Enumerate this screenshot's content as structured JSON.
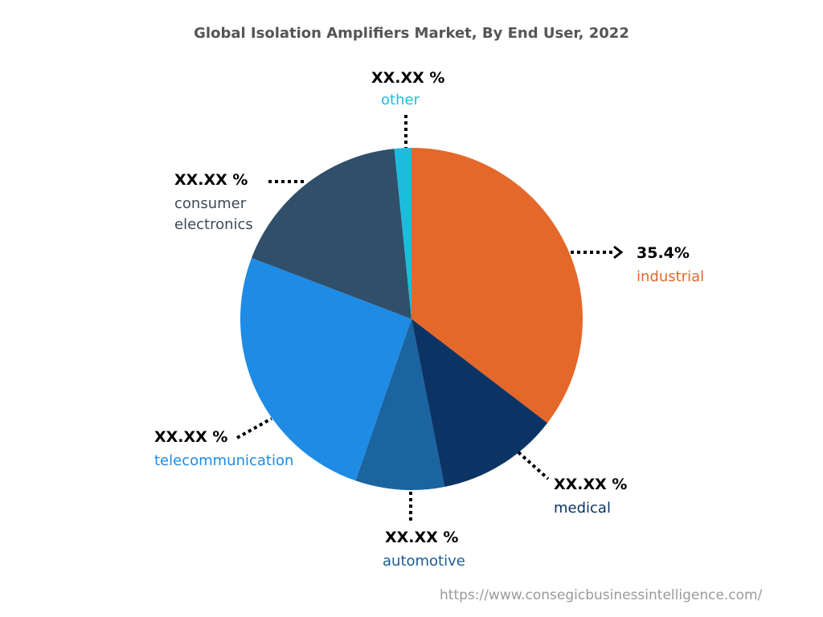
{
  "chart_data": {
    "type": "pie",
    "title": "Global Isolation Amplifiers Market, By End User, 2022",
    "start": "top",
    "direction": "clockwise",
    "slices": [
      {
        "name": "industrial",
        "value": 35.4,
        "label": "35.4%",
        "color": "#E4682A"
      },
      {
        "name": "medical",
        "value": 11.5,
        "label": "XX.XX %",
        "color": "#0B3363"
      },
      {
        "name": "automotive",
        "value": 8.4,
        "label": "XX.XX %",
        "color": "#1A64A0"
      },
      {
        "name": "telecommunication",
        "value": 25.5,
        "label": "XX.XX %",
        "color": "#1E8BE5"
      },
      {
        "name": "consumer electronics",
        "value": 17.6,
        "label": "XX.XX %",
        "color": "#2F4F6B"
      },
      {
        "name": "other",
        "value": 1.6,
        "label": "XX.XX %",
        "color": "#1BBCDE"
      }
    ]
  },
  "label_colors": {
    "industrial": "#E4682A",
    "medical": "#0B3363",
    "automotive": "#1A5C94",
    "telecommunication": "#1E8BE5",
    "consumer": "#3D4A57",
    "other": "#1BBCDE"
  },
  "labels": {
    "consumer_line1": "consumer",
    "consumer_line2": "electronics"
  },
  "source": "https://www.consegicbusinessintelligence.com/"
}
